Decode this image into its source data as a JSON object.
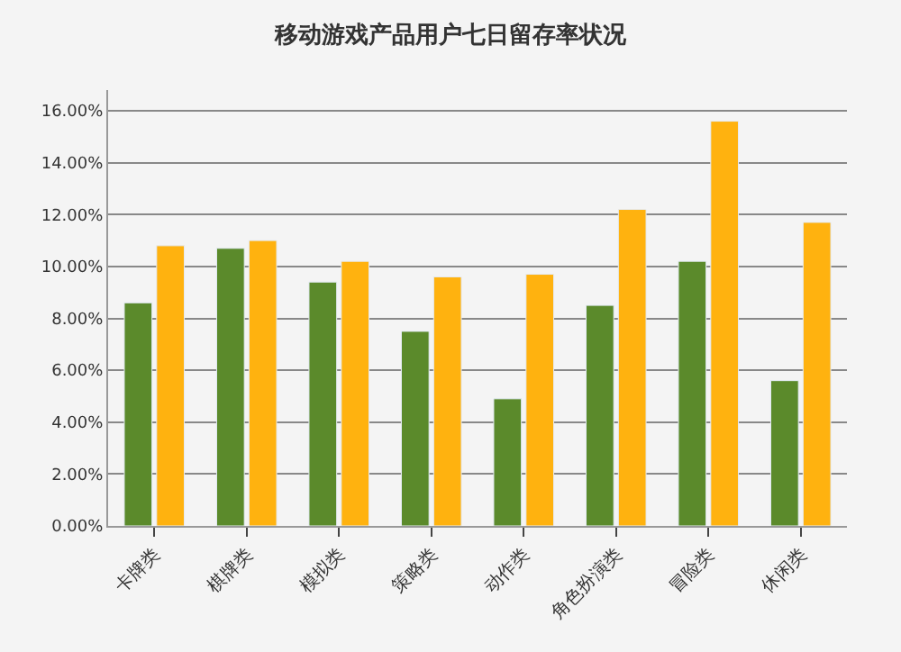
{
  "chart_data": {
    "type": "bar",
    "title": "移动游戏产品用户七日留存率状况",
    "categories": [
      "卡牌类",
      "棋牌类",
      "模拟类",
      "策略类",
      "动作类",
      "角色扮演类",
      "冒险类",
      "休闲类"
    ],
    "series": [
      {
        "color": "#5b8a2b",
        "values": [
          8.6,
          10.7,
          9.4,
          7.5,
          4.9,
          8.5,
          10.2,
          5.6
        ]
      },
      {
        "color": "#ffb20f",
        "values": [
          10.8,
          11.0,
          10.2,
          9.6,
          9.7,
          12.2,
          15.6,
          11.7
        ]
      }
    ],
    "ylim": [
      0,
      16.8
    ],
    "yticks": [
      {
        "value": 0,
        "label": "0.00%"
      },
      {
        "value": 2,
        "label": "2.00%"
      },
      {
        "value": 4,
        "label": "4.00%"
      },
      {
        "value": 6,
        "label": "6.00%"
      },
      {
        "value": 8,
        "label": "8.00%"
      },
      {
        "value": 10,
        "label": "10.00%"
      },
      {
        "value": 12,
        "label": "12.00%"
      },
      {
        "value": 14,
        "label": "14.00%"
      },
      {
        "value": 16,
        "label": "16.00%"
      }
    ],
    "grid": "y"
  }
}
